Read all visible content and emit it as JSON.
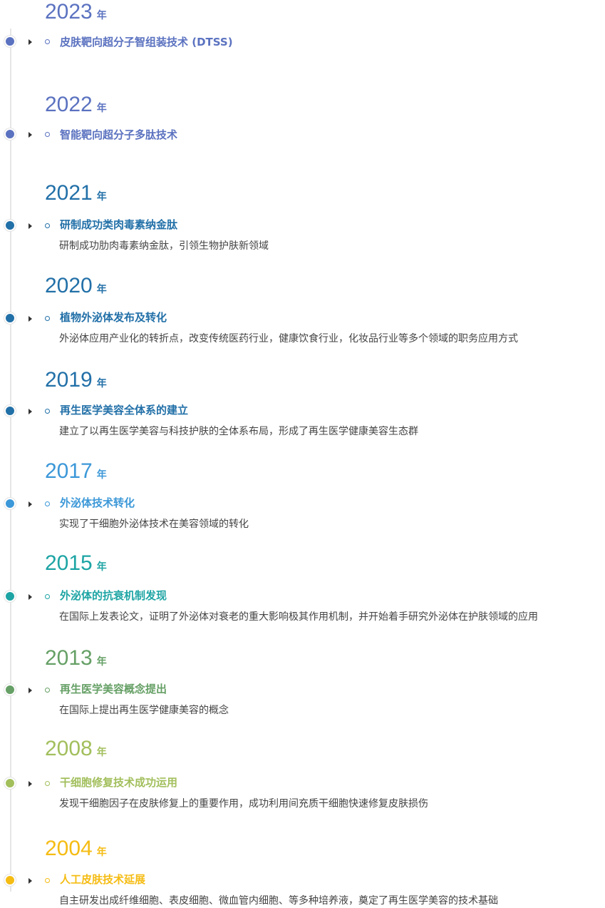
{
  "milestones": [
    {
      "year": "2023",
      "unit": "年",
      "color": "#5b72c0",
      "title": "皮肤靶向超分子智组装技术 (DTSS)",
      "desc": ""
    },
    {
      "year": "2022",
      "unit": "年",
      "color": "#5b72c0",
      "title": "智能靶向超分子多肽技术",
      "desc": ""
    },
    {
      "year": "2021",
      "unit": "年",
      "color": "#2270a8",
      "title": "研制成功类肉毒素纳金肽",
      "desc": "研制成功肋肉毒素纳金肽，引领生物护肤新领域"
    },
    {
      "year": "2020",
      "unit": "年",
      "color": "#2270a8",
      "title": "植物外泌体发布及转化",
      "desc": "外泌体应用产业化的转折点，改变传统医药行业，健康饮食行业，化妆品行业等多个领域的职务应用方式"
    },
    {
      "year": "2019",
      "unit": "年",
      "color": "#2270a8",
      "title": "再生医学美容全体系的建立",
      "desc": "建立了以再生医学美容与科技护肤的全体系布局，形成了再生医学健康美容生态群"
    },
    {
      "year": "2017",
      "unit": "年",
      "color": "#3c98d8",
      "title": "外泌体技术转化",
      "desc": "实现了干细胞外泌体技术在美容领域的转化"
    },
    {
      "year": "2015",
      "unit": "年",
      "color": "#1ea4a4",
      "title": "外泌体的抗衰机制发现",
      "desc": "在国际上发表论文，证明了外泌体对衰老的重大影响极其作用机制，并开始着手研究外泌体在护肤领域的应用"
    },
    {
      "year": "2013",
      "unit": "年",
      "color": "#66a066",
      "title": "再生医学美容概念提出",
      "desc": "在国际上提出再生医学健康美容的概念"
    },
    {
      "year": "2008",
      "unit": "年",
      "color": "#a2bf5c",
      "title": "干细胞修复技术成功运用",
      "desc": "发现干细胞因子在皮肤修复上的重要作用，成功利用间充质干细胞快速修复皮肤损伤"
    },
    {
      "year": "2004",
      "unit": "年",
      "color": "#f5bc14",
      "title": "人工皮肤技术延展",
      "desc": "自主研发出成纤维细胞、表皮细胞、微血管内细胞、等多种培养液，奠定了再生医学美容的技术基础"
    }
  ]
}
